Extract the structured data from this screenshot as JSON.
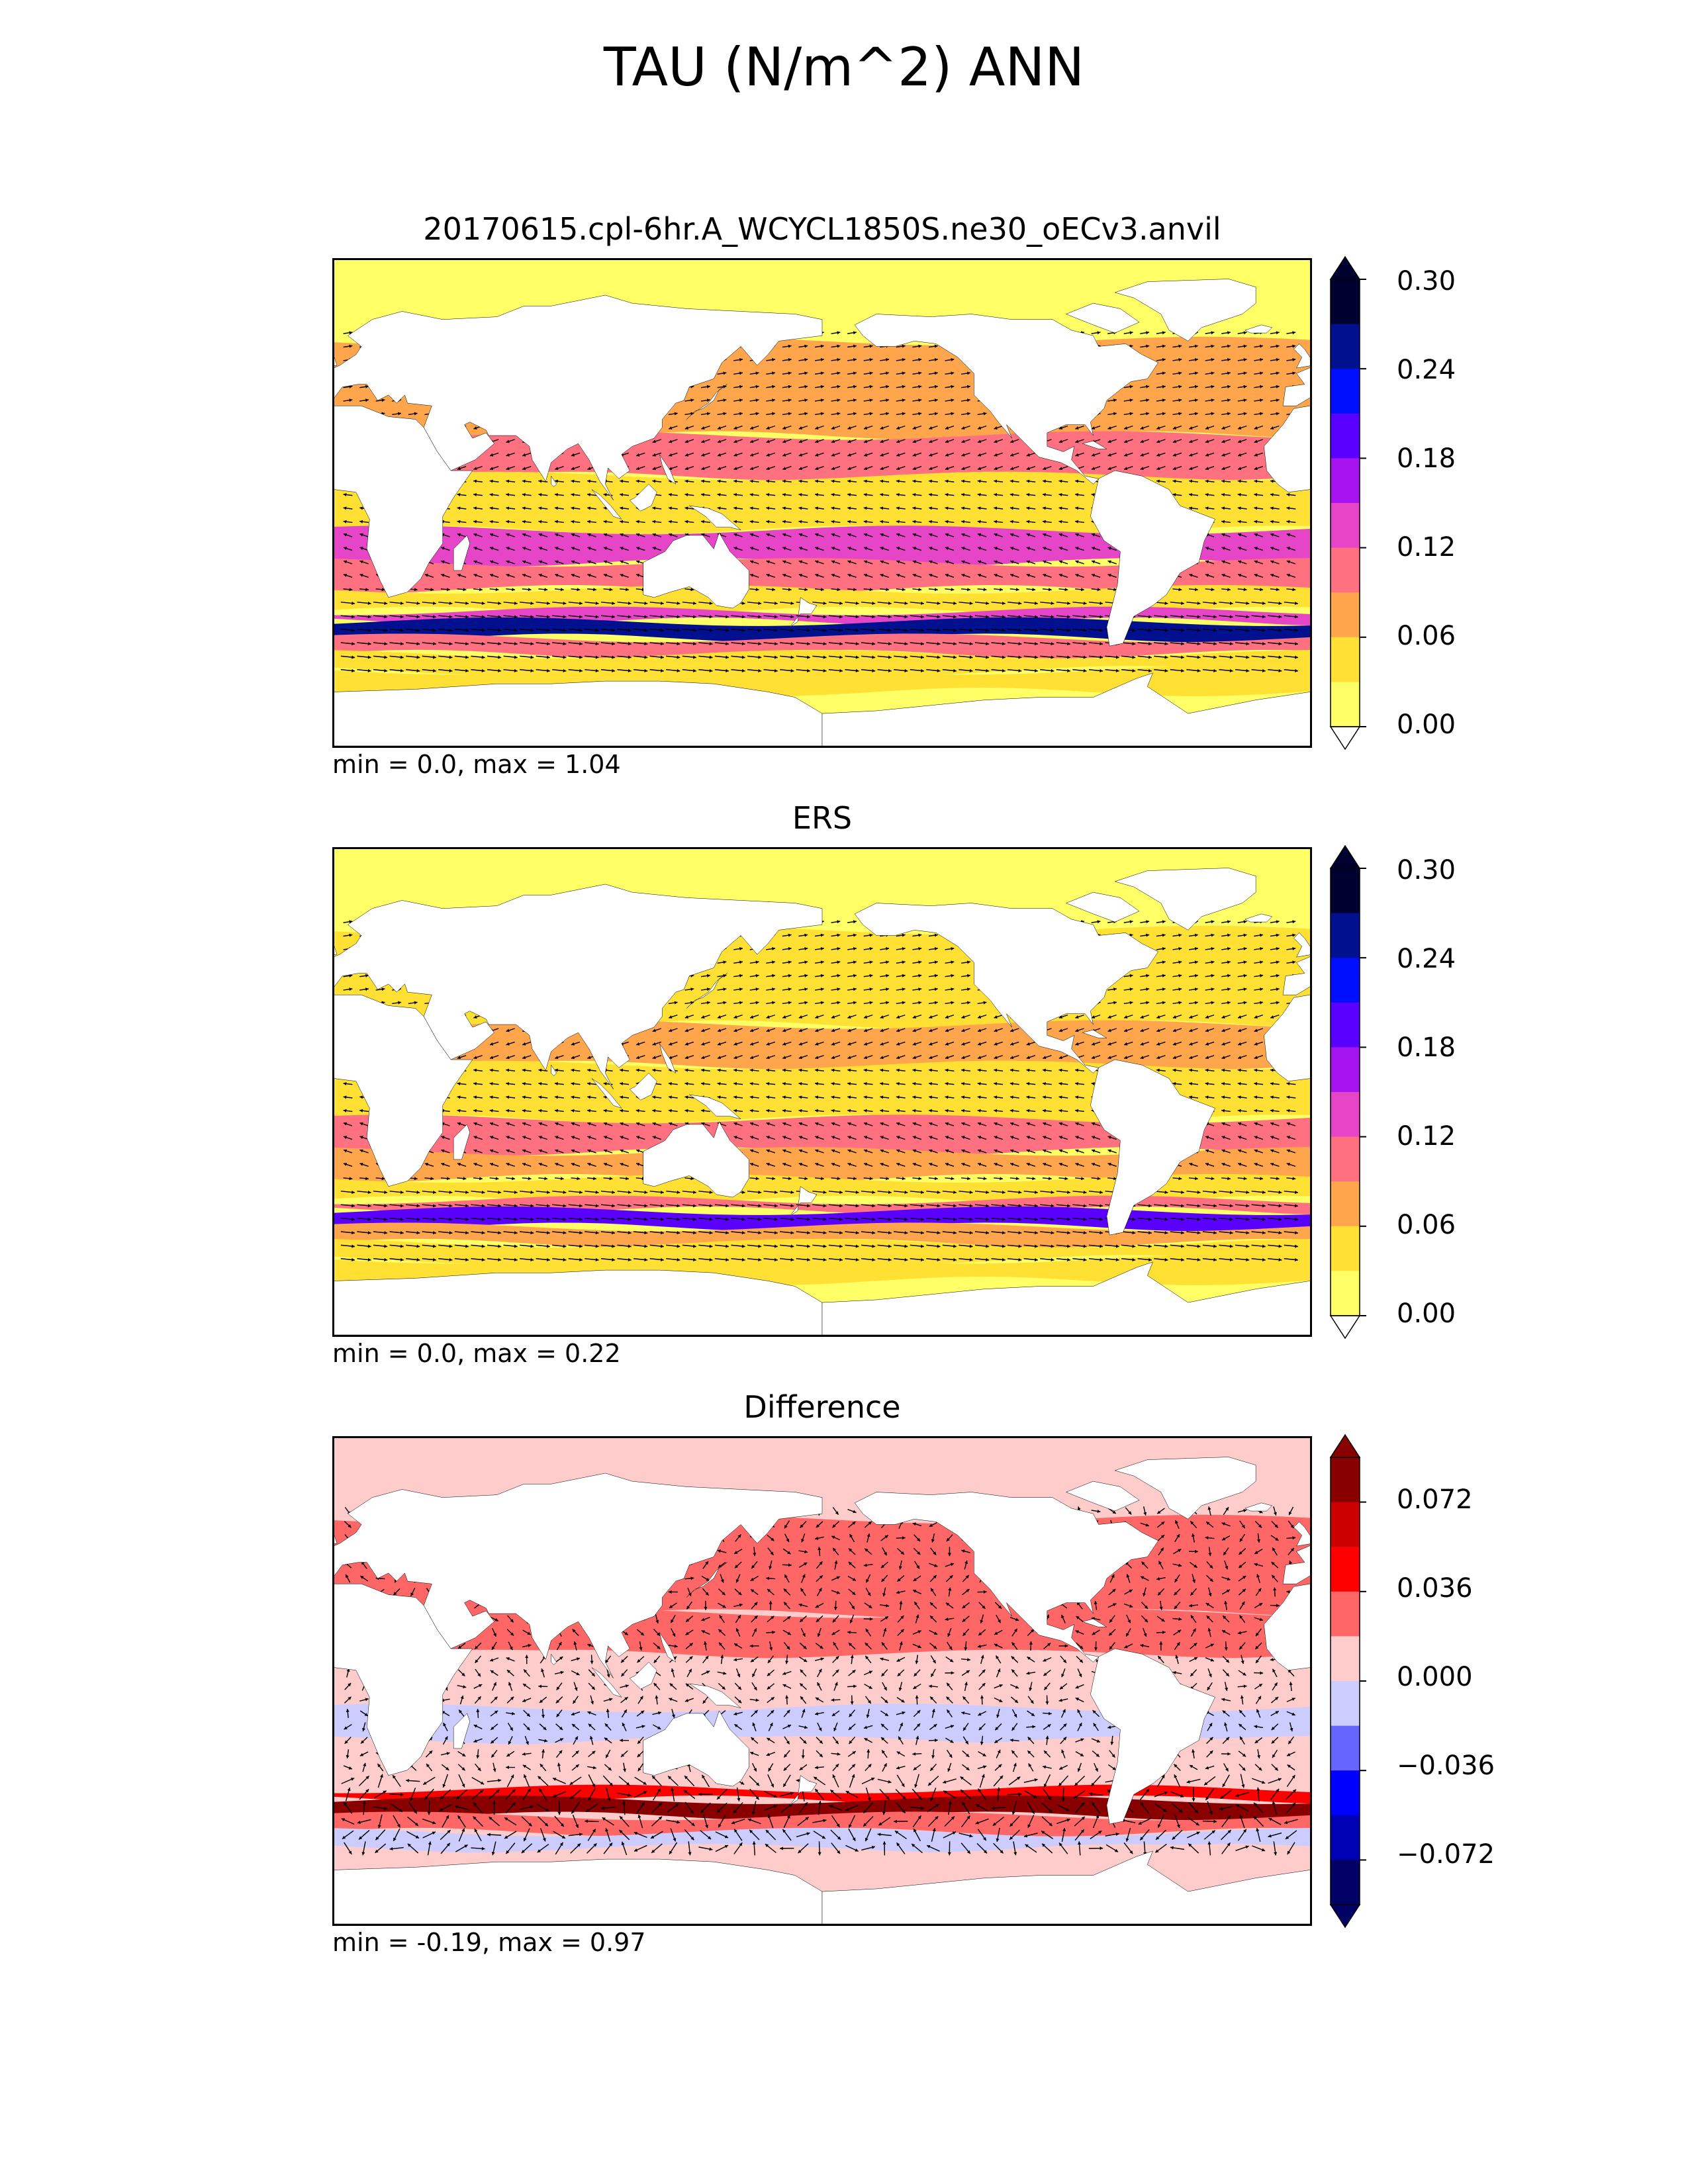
{
  "title": "TAU (N/m^2) ANN",
  "panels": [
    {
      "title": "20170615.cpl-6hr.A_WCYCL1850S.ne30_oECv3.anvil",
      "stats": "min = 0.0, max = 1.04",
      "scale": "seq",
      "colorbar_ticks": [
        "0.30",
        "0.24",
        "0.18",
        "0.12",
        "0.06",
        "0.00"
      ],
      "colors": [
        "#ffff66",
        "#ffe033",
        "#ffa64d",
        "#ff7080",
        "#e645c8",
        "#a614f0",
        "#5a00ff",
        "#0010ff",
        "#00108f",
        "#000030"
      ],
      "band_levels": [
        1,
        1,
        3,
        4,
        3,
        1,
        1,
        4,
        8,
        3
      ],
      "northern_band_level": 2
    },
    {
      "title": "ERS",
      "stats": "min = 0.0, max = 0.22",
      "scale": "seq",
      "colorbar_ticks": [
        "0.30",
        "0.24",
        "0.18",
        "0.12",
        "0.06",
        "0.00"
      ],
      "colors": [
        "#ffff66",
        "#ffe033",
        "#ffa64d",
        "#ff7080",
        "#e645c8",
        "#a614f0",
        "#5a00ff",
        "#0010ff",
        "#00108f",
        "#000030"
      ],
      "band_levels": [
        1,
        1,
        2,
        3,
        2,
        1,
        1,
        3,
        6,
        2
      ],
      "northern_band_level": 1
    },
    {
      "title": "Difference",
      "stats": "min = -0.19, max = 0.97",
      "scale": "div",
      "colorbar_ticks": [
        "0.072",
        "0.036",
        "0.000",
        "−0.036",
        "−0.072"
      ],
      "colors": [
        "#000066",
        "#0000b4",
        "#0000ff",
        "#6666ff",
        "#ccccff",
        "#ffcccc",
        "#ff6666",
        "#ff0000",
        "#cc0000",
        "#880000"
      ],
      "band_levels": [
        5,
        5,
        6,
        4,
        5,
        4,
        5,
        7,
        9,
        6
      ],
      "northern_band_level": 6
    }
  ],
  "land_color": "#ffffff",
  "coastline_color": "#000000",
  "vector_color": "#000000"
}
